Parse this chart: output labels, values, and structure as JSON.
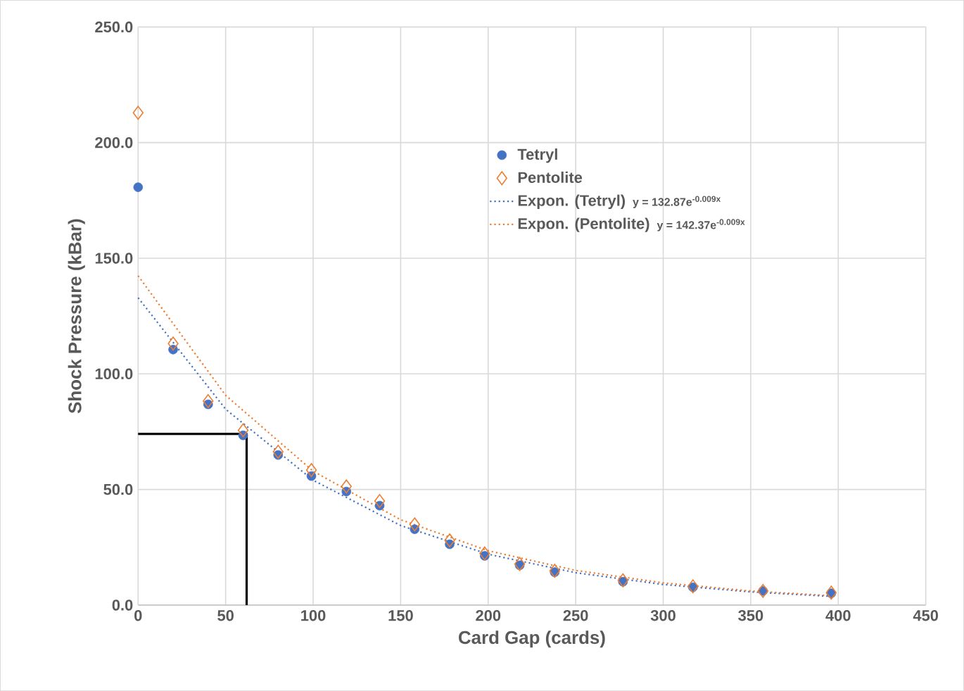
{
  "chart_data": {
    "type": "scatter",
    "xlabel": "Card Gap (cards)",
    "ylabel": "Shock Pressure (kBar)",
    "xlim": [
      0,
      450
    ],
    "ylim": [
      0,
      250
    ],
    "xticks": [
      0,
      50,
      100,
      150,
      200,
      250,
      300,
      350,
      400,
      450
    ],
    "yticks": [
      {
        "value": 0,
        "label": "0.0"
      },
      {
        "value": 50,
        "label": "50.0"
      },
      {
        "value": 100,
        "label": "100.0"
      },
      {
        "value": 150,
        "label": "150.0"
      },
      {
        "value": 200,
        "label": "200.0"
      },
      {
        "value": 250,
        "label": "250.0"
      }
    ],
    "grid": true,
    "legend": "top right",
    "annotations": [
      "y = 132.87e$^{-0.009x}$",
      "y = 142.37e$^{-0.009x}$"
    ],
    "series": [
      {
        "name": "Tetryl",
        "color": "#4472c4",
        "marker": "circle",
        "x": [
          0,
          20,
          40,
          60,
          80,
          99,
          119,
          138,
          158,
          178,
          198,
          218,
          238,
          277,
          317,
          357,
          396
        ],
        "values": [
          180.7,
          110.5,
          86.8,
          73.4,
          64.9,
          55.8,
          49.1,
          43.0,
          32.8,
          26.3,
          21.3,
          17.2,
          14.2,
          10.1,
          7.7,
          6.1,
          5.1
        ]
      },
      {
        "name": "Pentolite",
        "color": "#ed7d31",
        "marker": "diamond",
        "x": [
          0,
          20,
          40,
          60,
          80,
          99,
          119,
          138,
          158,
          178,
          198,
          218,
          238,
          277,
          317,
          357,
          396
        ],
        "values": [
          212.9,
          113.1,
          88.2,
          75.6,
          66.3,
          58.4,
          51.3,
          45.0,
          34.9,
          28.0,
          22.3,
          17.8,
          14.8,
          10.7,
          8.1,
          6.1,
          5.4
        ]
      },
      {
        "name": "Expon. (Tetryl)",
        "type": "line",
        "line_style": "dotted",
        "color": "#4472c4",
        "x": [
          0,
          50,
          100,
          150,
          200,
          250,
          300,
          350,
          395
        ],
        "values": [
          132.9,
          84.7,
          54.0,
          34.4,
          22.0,
          14.0,
          8.9,
          5.7,
          3.8
        ]
      },
      {
        "name": "Expon. (Pentolite)",
        "type": "line",
        "line_style": "dotted",
        "color": "#ed7d31",
        "x": [
          0,
          50,
          100,
          150,
          200,
          250,
          300,
          350,
          395
        ],
        "values": [
          142.4,
          90.7,
          57.9,
          36.9,
          23.5,
          15.0,
          9.6,
          6.1,
          4.1
        ]
      },
      {
        "type": "line",
        "line_style": "solid",
        "color": "#000000",
        "x": [
          0,
          62,
          62
        ],
        "values": [
          74,
          74,
          0
        ]
      }
    ]
  }
}
